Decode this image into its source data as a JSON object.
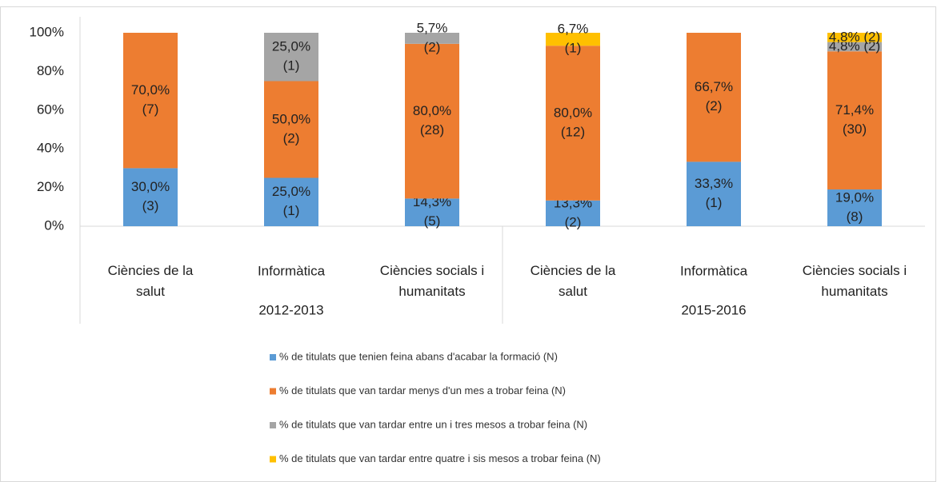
{
  "chart_data": {
    "type": "stacked_bar",
    "categories": [
      "Ciències de la salut",
      "Informàtica",
      "Ciències socials i humanitats",
      "Ciències de la salut",
      "Informàtica",
      "Ciències socials i humanitats"
    ],
    "groups": [
      {
        "name": "2012-2013",
        "size": 3
      },
      {
        "name": "2015-2016",
        "size": 3
      }
    ],
    "series": [
      {
        "name": "% de titulats que tenien feina abans d'acabar la formació (N)",
        "color": "#5b9bd5",
        "values": [
          30.0,
          25.0,
          14.3,
          13.3,
          33.3,
          19.0
        ],
        "value_labels": [
          [
            "30,0%",
            "(3)"
          ],
          [
            "25,0%",
            "(1)"
          ],
          [
            "14,3%",
            "(5)"
          ],
          [
            "13,3%",
            "(2)"
          ],
          [
            "33,3%",
            "(1)"
          ],
          [
            "19,0%",
            "(8)"
          ]
        ]
      },
      {
        "name": "% de titulats que van tardar menys d'un mes a trobar feina (N)",
        "color": "#ed7d31",
        "values": [
          70.0,
          50.0,
          80.0,
          80.0,
          66.7,
          71.4
        ],
        "value_labels": [
          [
            "70,0%",
            "(7)"
          ],
          [
            "50,0%",
            "(2)"
          ],
          [
            "80,0%",
            "(28)"
          ],
          [
            "80,0%",
            "(12)"
          ],
          [
            "66,7%",
            "(2)"
          ],
          [
            "71,4%",
            "(30)"
          ]
        ]
      },
      {
        "name": "% de titulats que van tardar entre un i tres mesos a trobar feina (N)",
        "color": "#a5a5a5",
        "values": [
          null,
          25.0,
          5.7,
          null,
          null,
          4.8
        ],
        "value_labels": [
          null,
          [
            "25,0%",
            "(1)"
          ],
          [
            "5,7%",
            "(2)"
          ],
          null,
          null,
          [
            "4,8% (2)"
          ]
        ]
      },
      {
        "name": "% de titulats que van tardar entre quatre i sis mesos a trobar feina (N)",
        "color": "#ffc000",
        "values": [
          null,
          null,
          null,
          6.7,
          null,
          4.8
        ],
        "value_labels": [
          null,
          null,
          null,
          [
            "6,7%",
            "(1)"
          ],
          null,
          [
            "4,8% (2)"
          ]
        ]
      }
    ],
    "ylim": [
      0,
      100
    ],
    "yticks": [
      {
        "value": 0,
        "label": "0%"
      },
      {
        "value": 20,
        "label": "20%"
      },
      {
        "value": 40,
        "label": "40%"
      },
      {
        "value": 60,
        "label": "60%"
      },
      {
        "value": 80,
        "label": "80%"
      },
      {
        "value": 100,
        "label": "100%"
      }
    ],
    "legend": "bottom"
  }
}
